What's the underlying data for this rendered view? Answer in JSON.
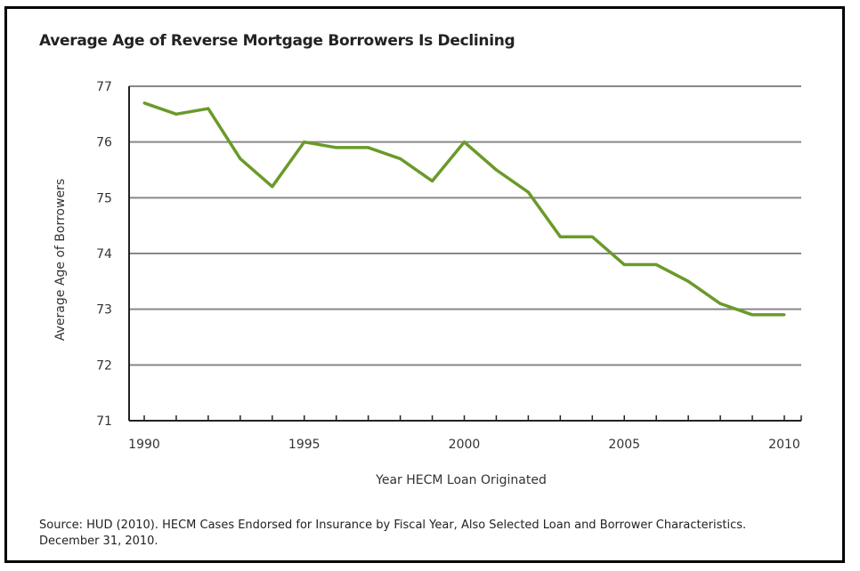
{
  "chart_data": {
    "type": "line",
    "title": "Average Age of Reverse Mortgage Borrowers Is Declining",
    "xlabel": "Year HECM Loan Originated",
    "ylabel": "Average Age of Borrowers",
    "x": [
      1990,
      1991,
      1992,
      1993,
      1994,
      1995,
      1996,
      1997,
      1998,
      1999,
      2000,
      2001,
      2002,
      2003,
      2004,
      2005,
      2006,
      2007,
      2008,
      2009,
      2010
    ],
    "series": [
      {
        "name": "Average Age",
        "color": "#6a9a2a",
        "values": [
          76.7,
          76.5,
          76.6,
          75.7,
          75.2,
          76.0,
          75.9,
          75.9,
          75.7,
          75.3,
          76.0,
          75.5,
          75.1,
          74.3,
          74.3,
          73.8,
          73.8,
          73.5,
          73.1,
          72.9,
          72.9
        ]
      }
    ],
    "xticks": [
      "1990",
      "1995",
      "2000",
      "2005",
      "2010"
    ],
    "yticks": [
      "71",
      "72",
      "73",
      "74",
      "75",
      "76",
      "77"
    ],
    "ylim": [
      71,
      77
    ],
    "xlim": [
      1989.5,
      2010.5
    ],
    "grid": true,
    "source": "Source: HUD (2010). HECM Cases Endorsed for Insurance by Fiscal Year, Also Selected Loan and Borrower Characteristics. December 31, 2010."
  }
}
